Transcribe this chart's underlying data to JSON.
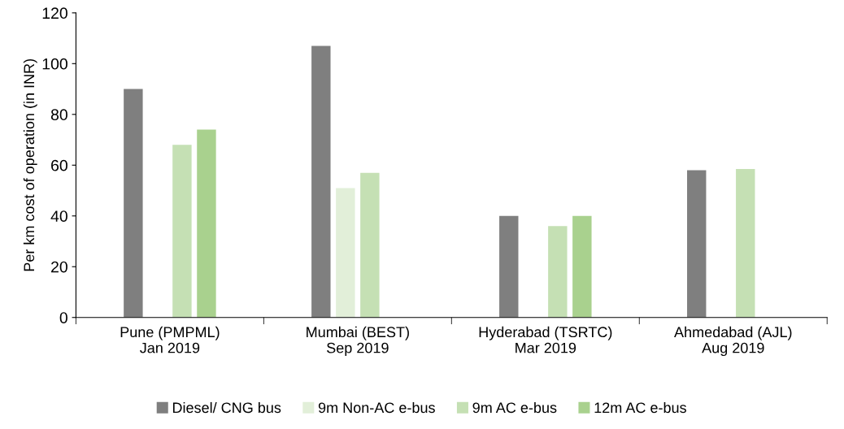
{
  "chart_data": {
    "type": "bar",
    "ylabel": "Per km cost of operation (in INR)",
    "categories": [
      "Pune (PMPML)\nJan 2019",
      "Mumbai (BEST)\nSep 2019",
      "Hyderabad (TSRTC)\nMar 2019",
      "Ahmedabad (AJL)\nAug 2019"
    ],
    "series": [
      {
        "name": "Diesel/ CNG bus",
        "color": "#7f7f7f",
        "values": [
          90,
          107,
          40,
          58
        ]
      },
      {
        "name": "9m Non-AC e-bus",
        "color": "#e2efd9",
        "values": [
          null,
          51,
          null,
          null
        ]
      },
      {
        "name": "9m AC e-bus",
        "color": "#c5e0b4",
        "values": [
          68,
          57,
          36,
          58.5
        ]
      },
      {
        "name": "12m AC e-bus",
        "color": "#a9d18e",
        "values": [
          74,
          null,
          40,
          null
        ]
      }
    ],
    "ylim": [
      0,
      120
    ],
    "yticks": [
      0,
      20,
      40,
      60,
      80,
      100,
      120
    ],
    "grid": false,
    "legend": "bottom"
  }
}
